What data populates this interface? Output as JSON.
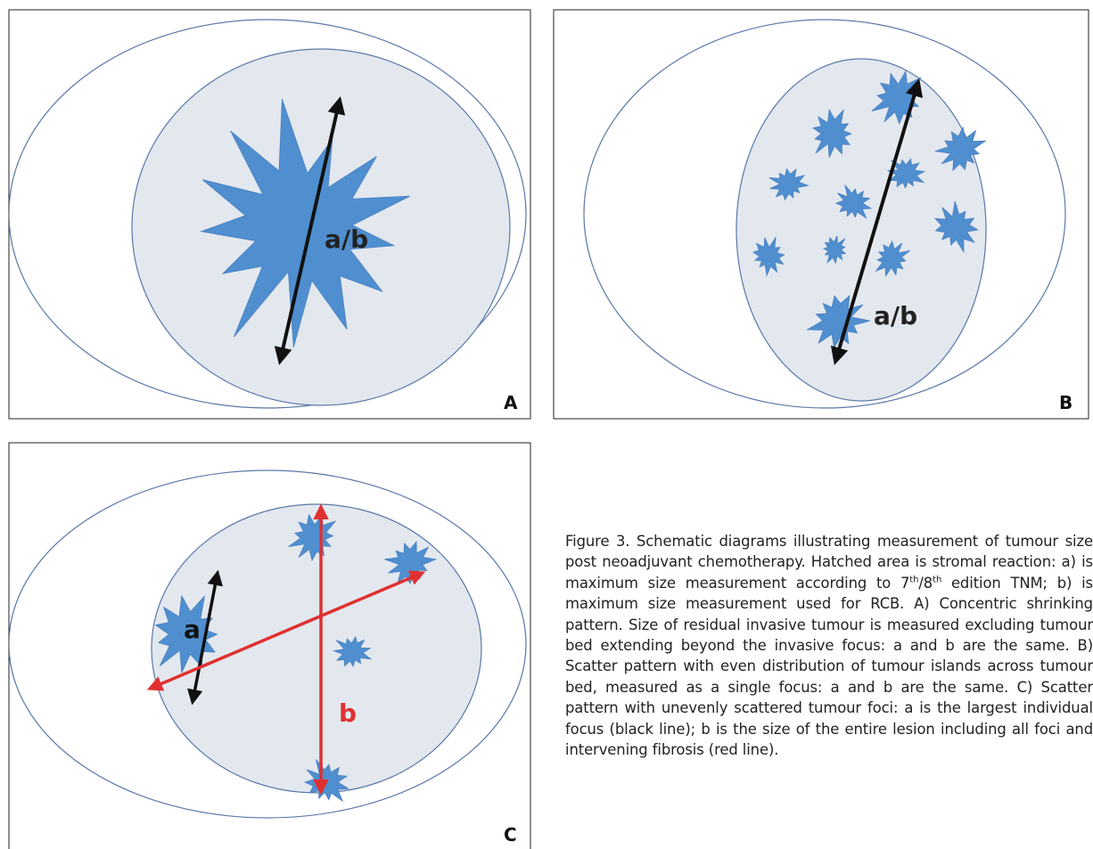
{
  "panels": [
    {
      "label": "A",
      "annotations": [
        "a/b"
      ]
    },
    {
      "label": "B",
      "annotations": [
        "a/b"
      ]
    },
    {
      "label": "C",
      "annotations": [
        "a",
        "b"
      ]
    }
  ],
  "caption": [
    "Figure 3. Schematic diagrams illustrating measurement of tumour size post neoadjuvant chemotherapy. Hatched area is stromal reaction: a) is maximum size measurement according to 7",
    "th",
    "/8",
    "th",
    " edition TNM; b) is maximum size measurement used for RCB. A) Concentric shrinking pattern. Size of residual invasive tumour is measured excluding tumour bed extending beyond the invasive focus: a and b are the same. B) Scatter pattern with even distribution of tumour islands across tumour bed, measured as a single focus: a and b are the same.  C) Scatter pattern with unevenly scattered tumour foci: a is the largest individual focus (black line); b is the size of the entire lesion including all foci and intervening fibrosis (red line)."
  ]
}
